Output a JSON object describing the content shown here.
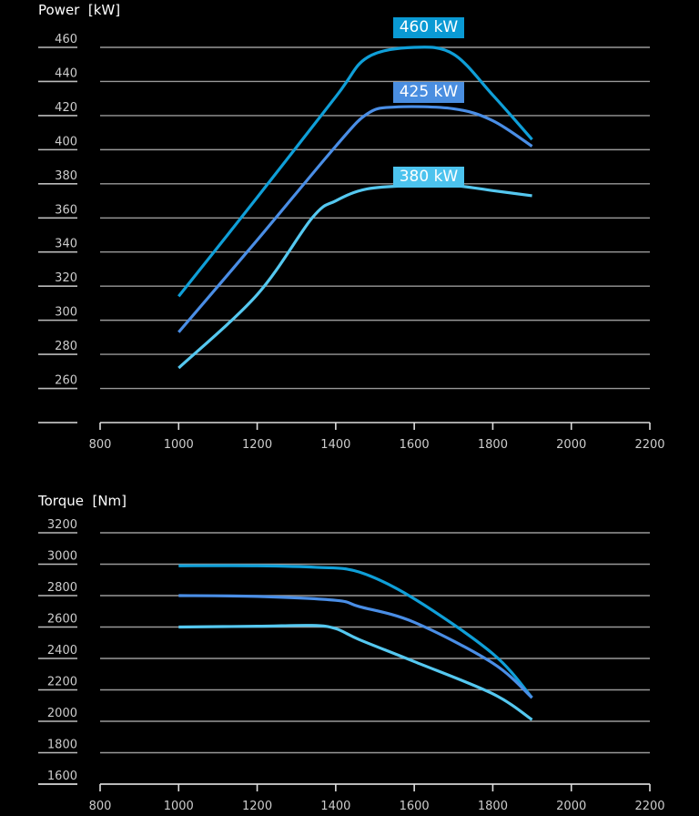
{
  "chart_data": [
    {
      "type": "line",
      "title": "Power  [kW]",
      "xlabel": "",
      "ylabel": "Power  [kW]",
      "xlim": [
        800,
        2200
      ],
      "ylim": [
        240,
        460
      ],
      "x_ticks": [
        "800",
        "1000",
        "1200",
        "1400",
        "1600",
        "1800",
        "2000",
        "2200"
      ],
      "y_ticks": [
        "460",
        "440",
        "420",
        "400",
        "380",
        "360",
        "340",
        "320",
        "300",
        "280",
        "260"
      ],
      "grid": true,
      "series": [
        {
          "name": "460 kW",
          "color": "#0f9fd8",
          "x": [
            1000,
            1200,
            1400,
            1480,
            1600,
            1700,
            1800,
            1900
          ],
          "y": [
            314,
            372,
            431,
            454,
            460,
            456,
            432,
            406
          ]
        },
        {
          "name": "425 kW",
          "color": "#4a8ee6",
          "x": [
            1000,
            1200,
            1400,
            1480,
            1550,
            1700,
            1800,
            1900
          ],
          "y": [
            293,
            347,
            402,
            421,
            425,
            424,
            417,
            402
          ]
        },
        {
          "name": "380 kW",
          "color": "#55c8f0",
          "x": [
            1000,
            1200,
            1340,
            1400,
            1480,
            1600,
            1700,
            1800,
            1900
          ],
          "y": [
            272,
            315,
            360,
            370,
            377,
            379,
            379,
            376,
            373
          ]
        }
      ]
    },
    {
      "type": "line",
      "title": "Torque  [Nm]",
      "xlabel": "",
      "ylabel": "Torque  [Nm]",
      "xlim": [
        800,
        2200
      ],
      "ylim": [
        1600,
        3200
      ],
      "x_ticks": [
        "800",
        "1000",
        "1200",
        "1400",
        "1600",
        "1800",
        "2000",
        "2200"
      ],
      "y_ticks": [
        "3200",
        "3000",
        "2800",
        "2600",
        "2400",
        "2200",
        "2000",
        "1800",
        "1600"
      ],
      "grid": true,
      "series": [
        {
          "color": "#0f9fd8",
          "x": [
            1000,
            1200,
            1350,
            1460,
            1600,
            1800,
            1900
          ],
          "y": [
            2990,
            2990,
            2980,
            2950,
            2780,
            2430,
            2150
          ]
        },
        {
          "color": "#4a8ee6",
          "x": [
            1000,
            1200,
            1400,
            1460,
            1600,
            1800,
            1900
          ],
          "y": [
            2800,
            2795,
            2770,
            2730,
            2630,
            2370,
            2150
          ]
        },
        {
          "color": "#55c8f0",
          "x": [
            1000,
            1200,
            1340,
            1400,
            1460,
            1600,
            1800,
            1900
          ],
          "y": [
            2600,
            2605,
            2610,
            2590,
            2520,
            2380,
            2175,
            2010
          ]
        }
      ]
    }
  ]
}
